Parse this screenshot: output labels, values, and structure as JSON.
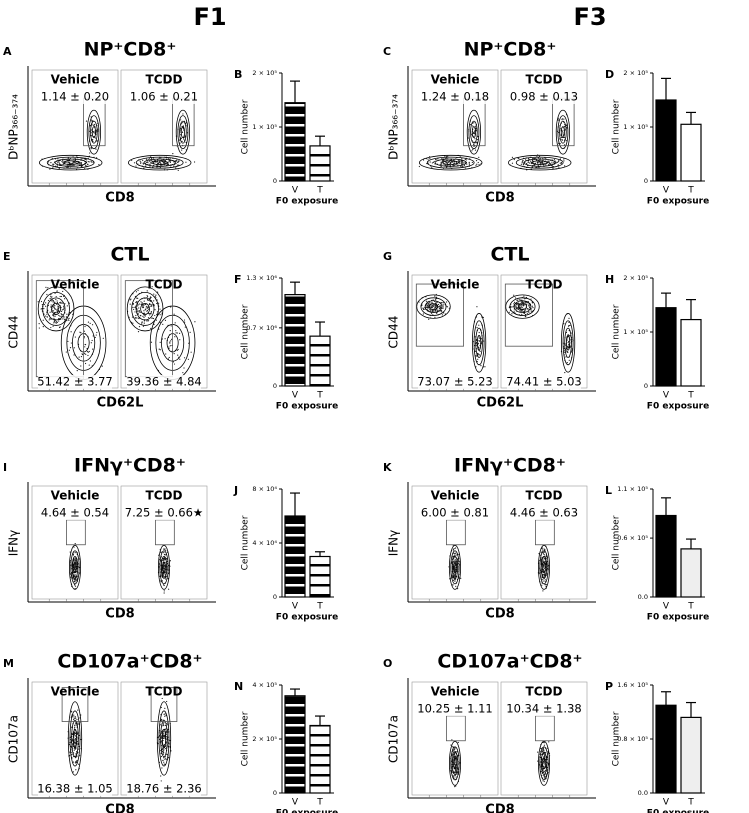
{
  "headers": [
    "F1",
    "F3"
  ],
  "flow_panels": [
    {
      "label": "A",
      "title": "NP⁺CD8⁺",
      "y_label": "DᵇNP₃₆₆₋₃₇₄",
      "x_label": "CD8",
      "stat_position": "top",
      "samples": [
        {
          "name": "Vehicle",
          "stat": "1.14 ± 0.20"
        },
        {
          "name": "TCDD",
          "stat": "1.06 ± 0.21"
        }
      ]
    },
    {
      "label": "C",
      "title": "NP⁺CD8⁺",
      "y_label": "DᵇNP₃₆₆₋₃₇₄",
      "x_label": "CD8",
      "stat_position": "top",
      "samples": [
        {
          "name": "Vehicle",
          "stat": "1.24 ± 0.18"
        },
        {
          "name": "TCDD",
          "stat": "0.98 ± 0.13"
        }
      ]
    },
    {
      "label": "E",
      "title": "CTL",
      "y_label": "CD44",
      "x_label": "CD62L",
      "stat_position": "bottom",
      "samples": [
        {
          "name": "Vehicle",
          "stat": "51.42 ± 3.77"
        },
        {
          "name": "TCDD",
          "stat": "39.36 ± 4.84"
        }
      ]
    },
    {
      "label": "G",
      "title": "CTL",
      "y_label": "CD44",
      "x_label": "CD62L",
      "stat_position": "bottom",
      "samples": [
        {
          "name": "Vehicle",
          "stat": "73.07 ± 5.23"
        },
        {
          "name": "TCDD",
          "stat": "74.41 ± 5.03"
        }
      ]
    },
    {
      "label": "I",
      "title": "IFNγ⁺CD8⁺",
      "y_label": "IFNγ",
      "x_label": "CD8",
      "stat_position": "top",
      "samples": [
        {
          "name": "Vehicle",
          "stat": "4.64 ± 0.54"
        },
        {
          "name": "TCDD",
          "stat": "7.25 ± 0.66★"
        }
      ]
    },
    {
      "label": "K",
      "title": "IFNγ⁺CD8⁺",
      "y_label": "IFNγ",
      "x_label": "CD8",
      "stat_position": "top",
      "samples": [
        {
          "name": "Vehicle",
          "stat": "6.00 ± 0.81"
        },
        {
          "name": "TCDD",
          "stat": "4.46 ± 0.63"
        }
      ]
    },
    {
      "label": "M",
      "title": "CD107a⁺CD8⁺",
      "y_label": "CD107a",
      "x_label": "CD8",
      "stat_position": "bottom",
      "samples": [
        {
          "name": "Vehicle",
          "stat": "16.38 ± 1.05"
        },
        {
          "name": "TCDD",
          "stat": "18.76 ± 2.36"
        }
      ]
    },
    {
      "label": "O",
      "title": "CD107a⁺CD8⁺",
      "y_label": "CD107a",
      "x_label": "CD8",
      "stat_position": "top",
      "samples": [
        {
          "name": "Vehicle",
          "stat": "10.25 ± 1.11"
        },
        {
          "name": "TCDD",
          "stat": "10.34 ± 1.38"
        }
      ]
    }
  ],
  "chart_data": [
    {
      "type": "bar",
      "label": "B",
      "y_label": "Cell number",
      "x_label": "F0 exposure",
      "categories": [
        "V",
        "T"
      ],
      "values": [
        145000,
        65000
      ],
      "errors": [
        40000,
        18000
      ],
      "colors": [
        "#000000",
        "#ffffff"
      ],
      "striped": true,
      "ylim": [
        0,
        200000
      ],
      "yticks": [
        0,
        {
          "value": 100000,
          "label": "1 × 10⁵"
        },
        {
          "value": 200000,
          "label": "2 × 10⁵"
        }
      ]
    },
    {
      "type": "bar",
      "label": "D",
      "y_label": "Cell number",
      "x_label": "F0 exposure",
      "categories": [
        "V",
        "T"
      ],
      "values": [
        150000,
        105000
      ],
      "errors": [
        40000,
        22000
      ],
      "colors": [
        "#000000",
        "#ffffff"
      ],
      "striped": false,
      "ylim": [
        0,
        200000
      ],
      "yticks": [
        0,
        {
          "value": 100000,
          "label": "1 × 10⁵"
        },
        {
          "value": 200000,
          "label": "2 × 10⁵"
        }
      ]
    },
    {
      "type": "bar",
      "label": "F",
      "y_label": "Cell number",
      "x_label": "F0 exposure",
      "categories": [
        "V",
        "T"
      ],
      "values": [
        1100000,
        600000
      ],
      "errors": [
        150000,
        170000
      ],
      "colors": [
        "#000000",
        "#ffffff"
      ],
      "striped": true,
      "ylim": [
        0,
        1300000
      ],
      "yticks": [
        0,
        {
          "value": 700000,
          "label": "0.7 × 10⁶"
        },
        {
          "value": 1300000,
          "label": "1.3 × 10⁶"
        }
      ]
    },
    {
      "type": "bar",
      "label": "H",
      "y_label": "Cell number",
      "x_label": "F0 exposure",
      "categories": [
        "V",
        "T"
      ],
      "values": [
        145000,
        123000
      ],
      "errors": [
        27000,
        37000
      ],
      "colors": [
        "#000000",
        "#ffffff"
      ],
      "striped": false,
      "ylim": [
        0,
        200000
      ],
      "yticks": [
        0,
        {
          "value": 100000,
          "label": "1 × 10⁵"
        },
        {
          "value": 200000,
          "label": "2 × 10⁵"
        }
      ]
    },
    {
      "type": "bar",
      "label": "J",
      "y_label": "Cell number",
      "x_label": "F0 exposure",
      "categories": [
        "V",
        "T"
      ],
      "values": [
        60000,
        30000
      ],
      "errors": [
        17000,
        3500
      ],
      "colors": [
        "#000000",
        "#ffffff"
      ],
      "striped": true,
      "ylim": [
        0,
        80000
      ],
      "yticks": [
        0,
        {
          "value": 40000,
          "label": "4 × 10⁴"
        },
        {
          "value": 80000,
          "label": "8 × 10⁴"
        }
      ]
    },
    {
      "type": "bar",
      "label": "L",
      "y_label": "Cell number",
      "x_label": "F0 exposure",
      "categories": [
        "V",
        "T"
      ],
      "values": [
        83000,
        49000
      ],
      "errors": [
        18000,
        10000
      ],
      "colors": [
        "#000000",
        "#eeeeee"
      ],
      "striped": false,
      "ylim": [
        0,
        110000
      ],
      "yticks": [
        {
          "value": 0,
          "label": "0.0"
        },
        {
          "value": 60000,
          "label": "0.6 × 10⁵"
        },
        {
          "value": 110000,
          "label": "1.1 × 10⁵"
        }
      ]
    },
    {
      "type": "bar",
      "label": "N",
      "y_label": "Cell number",
      "x_label": "F0 exposure",
      "categories": [
        "V",
        "T"
      ],
      "values": [
        360000,
        250000
      ],
      "errors": [
        25000,
        35000
      ],
      "colors": [
        "#000000",
        "#ffffff"
      ],
      "striped": true,
      "ylim": [
        0,
        400000
      ],
      "yticks": [
        0,
        {
          "value": 200000,
          "label": "2 × 10⁵"
        },
        {
          "value": 400000,
          "label": "4 × 10⁵"
        }
      ]
    },
    {
      "type": "bar",
      "label": "P",
      "y_label": "Cell number",
      "x_label": "F0 exposure",
      "categories": [
        "V",
        "T"
      ],
      "values": [
        130000,
        112000
      ],
      "errors": [
        20000,
        22000
      ],
      "colors": [
        "#000000",
        "#eeeeee"
      ],
      "striped": false,
      "ylim": [
        0,
        160000
      ],
      "yticks": [
        {
          "value": 0,
          "label": "0.0"
        },
        {
          "value": 80000,
          "label": "0.8 × 10⁵"
        },
        {
          "value": 160000,
          "label": "1.6 × 10⁵"
        }
      ]
    }
  ]
}
